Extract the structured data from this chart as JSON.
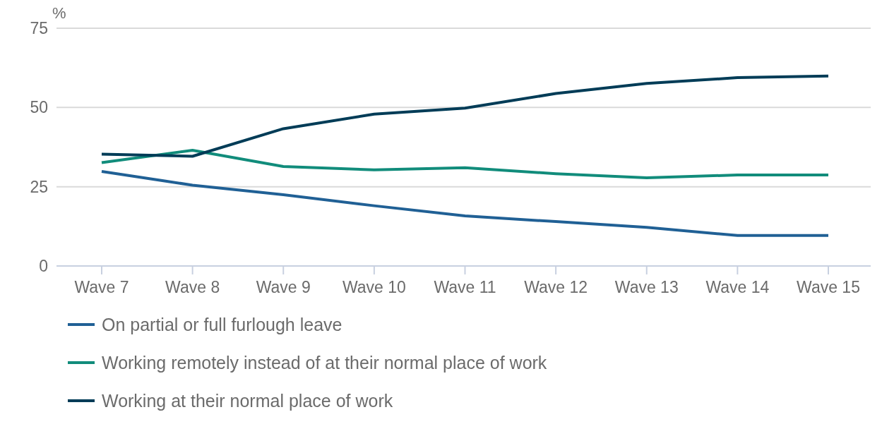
{
  "chart_data": {
    "type": "line",
    "ylabel": "%",
    "categories": [
      "Wave 7",
      "Wave 8",
      "Wave 9",
      "Wave 10",
      "Wave 11",
      "Wave 12",
      "Wave 13",
      "Wave 14",
      "Wave 15"
    ],
    "series": [
      {
        "name": "On partial or full furlough leave",
        "color": "#206095",
        "values": [
          29.8,
          25.5,
          22.5,
          19.0,
          15.8,
          14.0,
          12.2,
          9.6,
          9.6
        ]
      },
      {
        "name": "Working remotely instead of at their normal place of work",
        "color": "#118c7b",
        "values": [
          32.6,
          36.5,
          31.4,
          30.3,
          31.0,
          29.1,
          27.8,
          28.7,
          28.7
        ]
      },
      {
        "name": "Working at their normal place of work",
        "color": "#003c57",
        "values": [
          35.3,
          34.6,
          43.3,
          47.9,
          49.8,
          54.4,
          57.6,
          59.4,
          59.9
        ]
      }
    ],
    "ylim": [
      0,
      75
    ],
    "yticks": [
      0,
      25,
      50,
      75
    ],
    "grid": "y",
    "legend": "bottom",
    "marker": "none",
    "line_style": "solid"
  }
}
